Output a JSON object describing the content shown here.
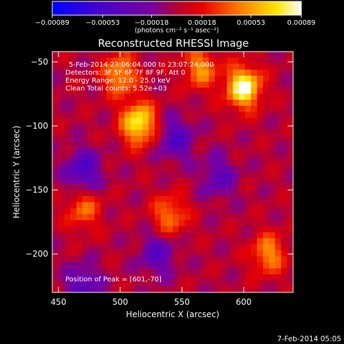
{
  "chart_data": {
    "type": "heatmap",
    "title": "Reconstructed RHESSI Image",
    "xlabel": "Heliocentric X (arcsec)",
    "ylabel": "Heliocentric Y (arcsec)",
    "xlim": [
      445,
      640
    ],
    "ylim": [
      -230,
      -42
    ],
    "x_ticks": [
      450,
      500,
      550,
      600
    ],
    "y_ticks": [
      -50,
      -100,
      -150,
      -200
    ],
    "x_tick_labels": [
      "450",
      "500",
      "550",
      "600"
    ],
    "y_tick_labels": [
      "−50",
      "−100",
      "−150",
      "−200"
    ],
    "colorbar": {
      "ticks": [
        -0.00089,
        -0.00053,
        -0.00018,
        0.00018,
        0.00053,
        0.00089
      ],
      "tick_labels": [
        "−0.00089",
        "−0.00053",
        "−0.00018",
        "0.00018",
        "0.00053",
        "0.00089"
      ],
      "units_label": "(photons cm⁻² s⁻¹ asec⁻²)",
      "colormap": "blue-purple-red-yellow-white",
      "range": [
        -0.00089,
        0.00089
      ]
    },
    "annotations": [
      "5-Feb-2014 23:06:04.000 to 23:07:24.000",
      "Detectors: 3F 5F 6F 7F 8F 9F, Att 0",
      "Energy Range: 12.0 - 25.0 keV",
      "Clean    Total counts: 5.52e+03"
    ],
    "peak_label": "Position of Peak = [601,-70]",
    "peak": [
      601,
      -70
    ],
    "hot_spots": [
      {
        "x": 515,
        "y": -98,
        "v": 0.0008
      },
      {
        "x": 600,
        "y": -70,
        "v": 0.00089
      },
      {
        "x": 500,
        "y": -60,
        "v": 0.00055
      },
      {
        "x": 565,
        "y": -55,
        "v": 0.0005
      },
      {
        "x": 620,
        "y": -200,
        "v": 0.0005
      },
      {
        "x": 540,
        "y": -170,
        "v": 0.00045
      },
      {
        "x": 470,
        "y": -165,
        "v": 0.0004
      }
    ],
    "cold_spots": [
      {
        "x": 470,
        "y": -135,
        "v": -0.0005
      },
      {
        "x": 545,
        "y": -110,
        "v": -0.00045
      },
      {
        "x": 530,
        "y": -200,
        "v": -0.0004
      },
      {
        "x": 470,
        "y": -225,
        "v": -0.0004
      },
      {
        "x": 580,
        "y": -140,
        "v": -0.00035
      }
    ]
  },
  "footer_timestamp": "7-Feb-2014 05:05"
}
